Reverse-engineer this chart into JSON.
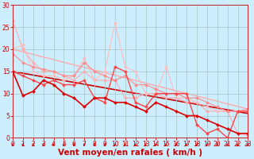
{
  "background_color": "#cceeff",
  "grid_color": "#aacccc",
  "xlabel": "Vent moyen/en rafales ( km/h )",
  "xlim": [
    0,
    23
  ],
  "ylim": [
    0,
    30
  ],
  "xticks": [
    0,
    1,
    2,
    3,
    4,
    5,
    6,
    7,
    8,
    9,
    10,
    11,
    12,
    13,
    14,
    15,
    16,
    17,
    18,
    19,
    20,
    21,
    22,
    23
  ],
  "yticks": [
    0,
    5,
    10,
    15,
    20,
    25,
    30
  ],
  "lines": [
    {
      "x": [
        0,
        1,
        2,
        3,
        4,
        5,
        6,
        7,
        8,
        9,
        10,
        11,
        12,
        13,
        14,
        15,
        16,
        17,
        18,
        19,
        20,
        21,
        22,
        23
      ],
      "y": [
        26.5,
        20.0,
        17.0,
        15.0,
        15.0,
        14.0,
        13.0,
        15.0,
        13.0,
        13.0,
        13.0,
        9.0,
        9.0,
        10.0,
        10.0,
        9.0,
        9.0,
        8.0,
        8.0,
        6.0,
        6.0,
        6.0,
        1.0,
        0.5
      ],
      "color": "#ffaaaa",
      "linewidth": 0.8,
      "marker": "D",
      "markersize": 2.0,
      "zorder": 2
    },
    {
      "x": [
        0,
        1,
        2,
        3,
        4,
        5,
        6,
        7,
        8,
        9,
        10,
        11,
        12,
        13,
        14,
        15,
        16,
        17,
        18,
        19,
        20,
        21,
        22,
        23
      ],
      "y": [
        20.0,
        21.0,
        15.0,
        14.0,
        14.0,
        13.0,
        14.0,
        18.0,
        13.0,
        15.0,
        26.0,
        16.0,
        15.0,
        10.0,
        10.0,
        16.0,
        9.0,
        9.0,
        8.0,
        7.0,
        6.0,
        6.0,
        6.0,
        6.0
      ],
      "color": "#ffbbbb",
      "linewidth": 0.8,
      "marker": "D",
      "markersize": 2.0,
      "zorder": 2
    },
    {
      "x": [
        0,
        1,
        2,
        3,
        4,
        5,
        6,
        7,
        8,
        9,
        10,
        11,
        12,
        13,
        14,
        15,
        16,
        17,
        18,
        19,
        20,
        21,
        22,
        23
      ],
      "y": [
        19.0,
        17.0,
        16.0,
        15.5,
        15.0,
        14.0,
        14.0,
        17.0,
        15.0,
        14.0,
        13.0,
        14.0,
        12.0,
        12.0,
        11.0,
        10.0,
        10.0,
        9.0,
        9.0,
        8.0,
        7.0,
        6.0,
        6.0,
        6.5
      ],
      "color": "#ff8888",
      "linewidth": 0.8,
      "marker": "D",
      "markersize": 2.0,
      "zorder": 2
    },
    {
      "x": [
        0,
        1,
        2,
        3,
        4,
        5,
        6,
        7,
        8,
        9,
        10,
        11,
        12,
        13,
        14,
        15,
        16,
        17,
        18,
        19,
        20,
        21,
        22,
        23
      ],
      "y": [
        15.0,
        14.0,
        13.0,
        12.0,
        13.0,
        12.0,
        12.0,
        13.0,
        9.0,
        8.0,
        16.0,
        15.0,
        8.0,
        7.0,
        10.0,
        10.0,
        10.0,
        10.0,
        3.0,
        1.0,
        2.0,
        0.0,
        6.0,
        6.0
      ],
      "color": "#ff4444",
      "linewidth": 1.0,
      "marker": "D",
      "markersize": 2.0,
      "zorder": 3
    },
    {
      "x": [
        0,
        1,
        2,
        3,
        4,
        5,
        6,
        7,
        8,
        9,
        10,
        11,
        12,
        13,
        14,
        15,
        16,
        17,
        18,
        19,
        20,
        21,
        22,
        23
      ],
      "y": [
        15.0,
        9.5,
        10.5,
        13.0,
        12.0,
        10.0,
        9.0,
        7.0,
        9.0,
        9.0,
        8.0,
        8.0,
        7.0,
        6.0,
        8.0,
        7.0,
        6.0,
        5.0,
        5.0,
        4.0,
        3.0,
        2.0,
        1.0,
        1.0
      ],
      "color": "#dd0000",
      "linewidth": 1.2,
      "marker": "D",
      "markersize": 2.0,
      "zorder": 4
    },
    {
      "x": [
        0,
        23
      ],
      "y": [
        15.0,
        5.5
      ],
      "color": "#cc0000",
      "linewidth": 1.2,
      "marker": null,
      "markersize": 0,
      "zorder": 1,
      "linestyle": "-"
    },
    {
      "x": [
        0,
        23
      ],
      "y": [
        20.0,
        6.5
      ],
      "color": "#ffaaaa",
      "linewidth": 1.0,
      "marker": null,
      "markersize": 0,
      "zorder": 1,
      "linestyle": "-"
    }
  ],
  "arrow_color": "#cc0000",
  "tick_label_fontsize": 5.5,
  "xlabel_fontsize": 7.5,
  "xlabel_color": "#cc0000",
  "tick_color": "#cc0000"
}
